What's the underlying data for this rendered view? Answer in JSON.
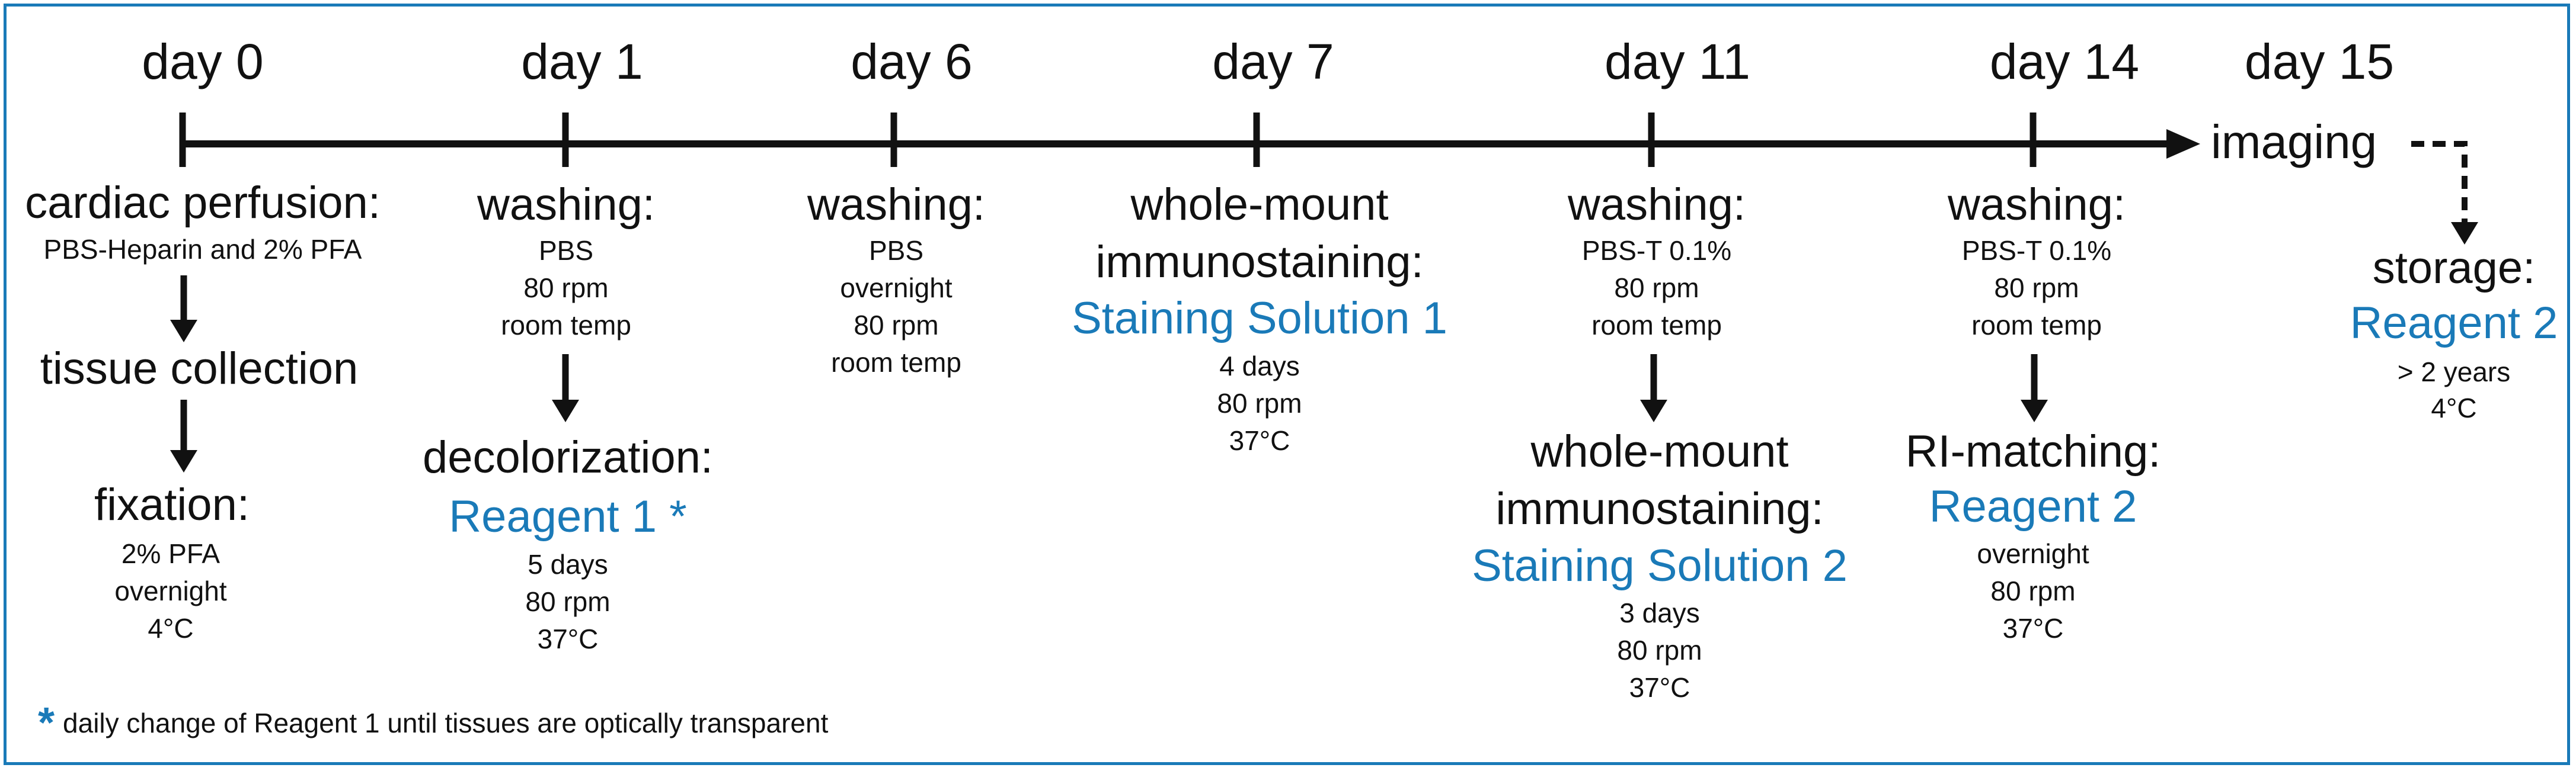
{
  "colors": {
    "accent": "#1a7ab8",
    "text": "#111111",
    "frame": "#1a7ab8"
  },
  "timeline": {
    "days": [
      "day 0",
      "day 1",
      "day 6",
      "day 7",
      "day 11",
      "day 14",
      "day 15"
    ],
    "end_label": "imaging"
  },
  "col0": {
    "perfusion_title": "cardiac perfusion:",
    "perfusion_detail": "PBS-Heparin and 2% PFA",
    "collection_title": "tissue collection",
    "fixation_title": "fixation:",
    "fixation_lines": [
      "2% PFA",
      "overnight",
      "4°C"
    ]
  },
  "col1": {
    "washing_title": "washing:",
    "washing_lines": [
      "PBS",
      "80 rpm",
      "room temp"
    ],
    "decolor_title": "decolorization:",
    "decolor_reagent": "Reagent 1 *",
    "decolor_lines": [
      "5 days",
      "80 rpm",
      "37°C"
    ]
  },
  "col6": {
    "washing_title": "washing:",
    "washing_lines": [
      "PBS",
      "overnight",
      "80 rpm",
      "room temp"
    ]
  },
  "col7": {
    "title_line1": "whole-mount",
    "title_line2": "immunostaining:",
    "solution": "Staining Solution 1",
    "lines": [
      "4 days",
      "80 rpm",
      "37°C"
    ]
  },
  "col11": {
    "washing_title": "washing:",
    "washing_lines": [
      "PBS-T 0.1%",
      "80 rpm",
      "room temp"
    ],
    "stain_title_line1": "whole-mount",
    "stain_title_line2": "immunostaining:",
    "stain_solution": "Staining Solution 2",
    "stain_lines": [
      "3 days",
      "80 rpm",
      "37°C"
    ]
  },
  "col14": {
    "washing_title": "washing:",
    "washing_lines": [
      "PBS-T 0.1%",
      "80 rpm",
      "room temp"
    ],
    "ri_title": "RI-matching:",
    "ri_reagent": "Reagent 2",
    "ri_lines": [
      "overnight",
      "80 rpm",
      "37°C"
    ]
  },
  "col15": {
    "storage_title": "storage:",
    "storage_reagent": "Reagent 2",
    "storage_lines": [
      "> 2 years",
      "4°C"
    ]
  },
  "footnote": {
    "star": "*",
    "text": "daily change of Reagent 1 until tissues are optically transparent"
  }
}
